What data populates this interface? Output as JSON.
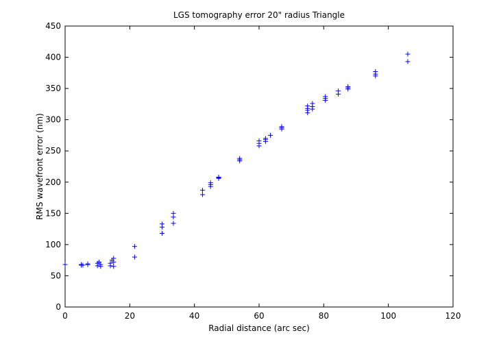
{
  "chart_data": {
    "type": "scatter",
    "title": "LGS tomography error 20\" radius Triangle",
    "xlabel": "Radial distance (arc sec)",
    "ylabel": "RMS wavefront error (nm)",
    "xlim": [
      0,
      120
    ],
    "ylim": [
      0,
      450
    ],
    "xticks": [
      0,
      20,
      40,
      60,
      80,
      100,
      120
    ],
    "yticks": [
      0,
      50,
      100,
      150,
      200,
      250,
      300,
      350,
      400,
      450
    ],
    "grid": false,
    "marker": "+",
    "marker_color": "#0000ff",
    "series": [
      {
        "points": [
          [
            0,
            68
          ],
          [
            5,
            67
          ],
          [
            5,
            68
          ],
          [
            5.5,
            67
          ],
          [
            7,
            68
          ],
          [
            7,
            69
          ],
          [
            10,
            66
          ],
          [
            10,
            70
          ],
          [
            10.5,
            72
          ],
          [
            11,
            65
          ],
          [
            11,
            68
          ],
          [
            14,
            66
          ],
          [
            14,
            70
          ],
          [
            14.5,
            75
          ],
          [
            15,
            65
          ],
          [
            15,
            72
          ],
          [
            15,
            78
          ],
          [
            21.5,
            80
          ],
          [
            21.5,
            97
          ],
          [
            30,
            118
          ],
          [
            30,
            128
          ],
          [
            30,
            133
          ],
          [
            33.5,
            134
          ],
          [
            33.5,
            144
          ],
          [
            33.5,
            150
          ],
          [
            42.5,
            180
          ],
          [
            42.5,
            187
          ],
          [
            45,
            193
          ],
          [
            45,
            196
          ],
          [
            45,
            199
          ],
          [
            47.5,
            206
          ],
          [
            47.5,
            207
          ],
          [
            47.5,
            208
          ],
          [
            54,
            234
          ],
          [
            54,
            236
          ],
          [
            54,
            238
          ],
          [
            60,
            258
          ],
          [
            60,
            262
          ],
          [
            60,
            266
          ],
          [
            62,
            265
          ],
          [
            62,
            268
          ],
          [
            62,
            270
          ],
          [
            63.5,
            275
          ],
          [
            67,
            285
          ],
          [
            67,
            287
          ],
          [
            67,
            289
          ],
          [
            75,
            311
          ],
          [
            75,
            315
          ],
          [
            75,
            318
          ],
          [
            75,
            322
          ],
          [
            76.5,
            317
          ],
          [
            76.5,
            321
          ],
          [
            76.5,
            326
          ],
          [
            80.5,
            331
          ],
          [
            80.5,
            334
          ],
          [
            80.5,
            337
          ],
          [
            84.5,
            341
          ],
          [
            84.5,
            346
          ],
          [
            87.5,
            349
          ],
          [
            87.5,
            351
          ],
          [
            87.5,
            353
          ],
          [
            96,
            370
          ],
          [
            96,
            373
          ],
          [
            96,
            377
          ],
          [
            106,
            393
          ],
          [
            106,
            405
          ]
        ]
      }
    ]
  }
}
